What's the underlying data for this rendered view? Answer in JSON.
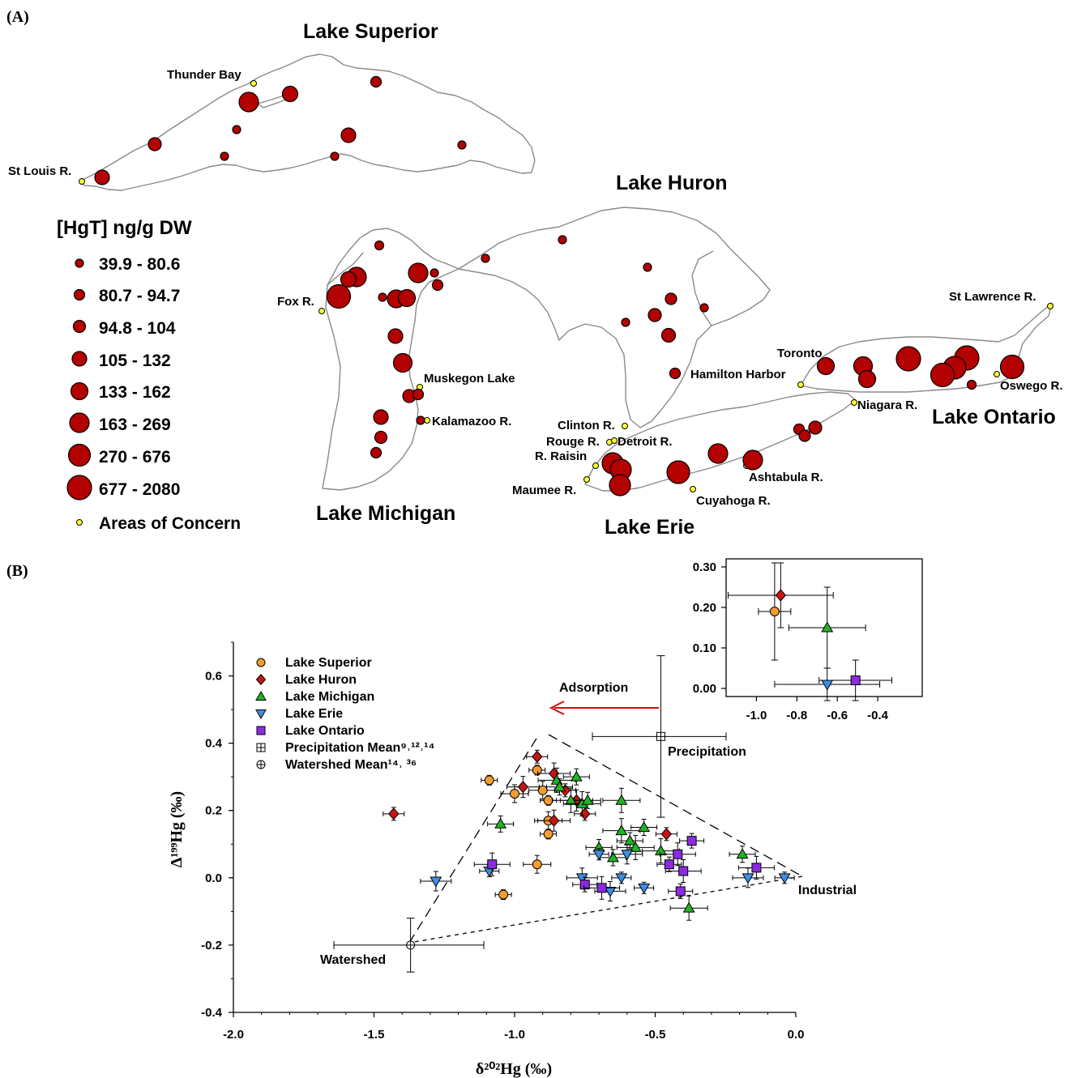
{
  "panel_a": {
    "panel_label": "(A)",
    "lake_labels": {
      "superior": "Lake Superior",
      "huron": "Lake Huron",
      "michigan": "Lake Michigan",
      "erie": "Lake Erie",
      "ontario": "Lake Ontario"
    },
    "site_labels": {
      "thunder_bay": "Thunder Bay",
      "st_louis": "St Louis R.",
      "fox": "Fox R.",
      "muskegon": "Muskegon Lake",
      "kalamazoo": "Kalamazoo R.",
      "clinton": "Clinton R.",
      "rouge": "Rouge R.",
      "detroit": "Detroit R.",
      "raisin": "R. Raisin",
      "maumee": "Maumee R.",
      "cuyahoga": "Cuyahoga R.",
      "ashtabula": "Ashtabula R.",
      "hamilton": "Hamilton Harbor",
      "toronto": "Toronto",
      "niagara": "Niagara R.",
      "oswego": "Oswego R.",
      "st_lawrence": "St Lawrence R."
    },
    "legend": {
      "title": "[HgT] ng/g DW",
      "ranges": [
        "39.9 - 80.6",
        "80.7 - 94.7",
        "94.8 - 104",
        "105 - 132",
        "133 - 162",
        "163 - 269",
        "270 - 676",
        "677 - 2080"
      ],
      "aoc_label": "Areas of Concern"
    },
    "colors": {
      "sediment": "#b30000",
      "aoc": "#ffff33",
      "coast": "#8a8a8a"
    }
  },
  "panel_b": {
    "panel_label": "(B)"
  },
  "chart_data": [
    {
      "type": "scatter",
      "title": "",
      "xlabel": "δ²⁰²Hg (‰)",
      "ylabel": "Δ¹⁹⁹Hg (‰)",
      "xlim": [
        -2.0,
        0.0
      ],
      "ylim": [
        -0.4,
        0.7
      ],
      "xticks": [
        "-2.0",
        "-1.5",
        "-1.0",
        "-0.5",
        "0.0"
      ],
      "yticks": [
        "-0.4",
        "-0.2",
        "0.0",
        "0.2",
        "0.4",
        "0.6"
      ],
      "legend_position": "top-left",
      "series": [
        {
          "name": "Lake Superior",
          "marker": "circle",
          "color": "#f39c2f",
          "points": [
            [
              -1.09,
              0.29
            ],
            [
              -1.0,
              0.25
            ],
            [
              -0.92,
              0.32
            ],
            [
              -0.9,
              0.26
            ],
            [
              -0.88,
              0.23
            ],
            [
              -0.88,
              0.17
            ],
            [
              -0.88,
              0.13
            ],
            [
              -0.92,
              0.04
            ],
            [
              -1.04,
              -0.05
            ]
          ]
        },
        {
          "name": "Lake Huron",
          "marker": "diamond",
          "color": "#c81414",
          "points": [
            [
              -1.43,
              0.19
            ],
            [
              -0.97,
              0.27
            ],
            [
              -0.92,
              0.36
            ],
            [
              -0.86,
              0.31
            ],
            [
              -0.82,
              0.26
            ],
            [
              -0.78,
              0.23
            ],
            [
              -0.75,
              0.19
            ],
            [
              -0.86,
              0.17
            ],
            [
              -0.46,
              0.13
            ]
          ]
        },
        {
          "name": "Lake Michigan",
          "marker": "triangle-up",
          "color": "#22b422",
          "points": [
            [
              -1.05,
              0.16
            ],
            [
              -0.85,
              0.29
            ],
            [
              -0.84,
              0.27
            ],
            [
              -0.8,
              0.23
            ],
            [
              -0.78,
              0.3
            ],
            [
              -0.76,
              0.22
            ],
            [
              -0.74,
              0.23
            ],
            [
              -0.62,
              0.23
            ],
            [
              -0.7,
              0.09
            ],
            [
              -0.62,
              0.14
            ],
            [
              -0.59,
              0.11
            ],
            [
              -0.57,
              0.09
            ],
            [
              -0.54,
              0.15
            ],
            [
              -0.48,
              0.08
            ],
            [
              -0.65,
              0.06
            ],
            [
              -0.38,
              -0.09
            ],
            [
              -0.19,
              0.07
            ]
          ]
        },
        {
          "name": "Lake Erie",
          "marker": "triangle-down",
          "color": "#3b8fe6",
          "points": [
            [
              -1.28,
              -0.01
            ],
            [
              -1.09,
              0.02
            ],
            [
              -0.76,
              0.0
            ],
            [
              -0.7,
              0.07
            ],
            [
              -0.66,
              -0.04
            ],
            [
              -0.62,
              0.0
            ],
            [
              -0.6,
              0.07
            ],
            [
              -0.54,
              -0.03
            ],
            [
              -0.17,
              0.0
            ],
            [
              -0.04,
              0.0
            ]
          ]
        },
        {
          "name": "Lake Ontario",
          "marker": "square",
          "color": "#8c2be2",
          "points": [
            [
              -1.08,
              0.04
            ],
            [
              -0.75,
              -0.02
            ],
            [
              -0.69,
              -0.03
            ],
            [
              -0.45,
              0.04
            ],
            [
              -0.42,
              0.07
            ],
            [
              -0.41,
              -0.04
            ],
            [
              -0.4,
              0.02
            ],
            [
              -0.37,
              0.11
            ],
            [
              -0.14,
              0.03
            ]
          ]
        },
        {
          "name": "Precipitation Mean⁹˒¹²˒¹⁴",
          "marker": "square-plus",
          "color": "#ffffff",
          "points": [
            [
              -0.48,
              0.42
            ]
          ]
        },
        {
          "name": "Watershed Mean¹⁴˒ ³⁶",
          "marker": "circle-plus",
          "color": "#ffffff",
          "points": [
            [
              -1.37,
              -0.2
            ]
          ]
        }
      ],
      "annotations": {
        "adsorption": "Adsorption",
        "precipitation": "Precipitation",
        "industrial": "Industrial",
        "watershed": "Watershed"
      },
      "mixing_triangle": [
        [
          -0.88,
          0.43
        ],
        [
          0.0,
          0.0
        ],
        [
          -1.37,
          -0.2
        ]
      ]
    },
    {
      "type": "scatter",
      "title": "",
      "xlabel": "",
      "ylabel": "",
      "xlim": [
        -1.15,
        -0.18
      ],
      "ylim": [
        -0.02,
        0.32
      ],
      "xticks": [
        "-1.0",
        "-0.8",
        "-0.6",
        "-0.4"
      ],
      "yticks": [
        "0.00",
        "0.10",
        "0.20",
        "0.30"
      ],
      "series": [
        {
          "name": "Lake Superior",
          "marker": "circle",
          "color": "#f39c2f",
          "points": [
            [
              -0.91,
              0.19
            ]
          ]
        },
        {
          "name": "Lake Huron",
          "marker": "diamond",
          "color": "#c81414",
          "points": [
            [
              -0.88,
              0.23
            ]
          ]
        },
        {
          "name": "Lake Michigan",
          "marker": "triangle-up",
          "color": "#22b422",
          "points": [
            [
              -0.65,
              0.15
            ]
          ]
        },
        {
          "name": "Lake Erie",
          "marker": "triangle-down",
          "color": "#3b8fe6",
          "points": [
            [
              -0.65,
              0.01
            ]
          ]
        },
        {
          "name": "Lake Ontario",
          "marker": "square",
          "color": "#8c2be2",
          "points": [
            [
              -0.51,
              0.02
            ]
          ]
        }
      ]
    }
  ]
}
